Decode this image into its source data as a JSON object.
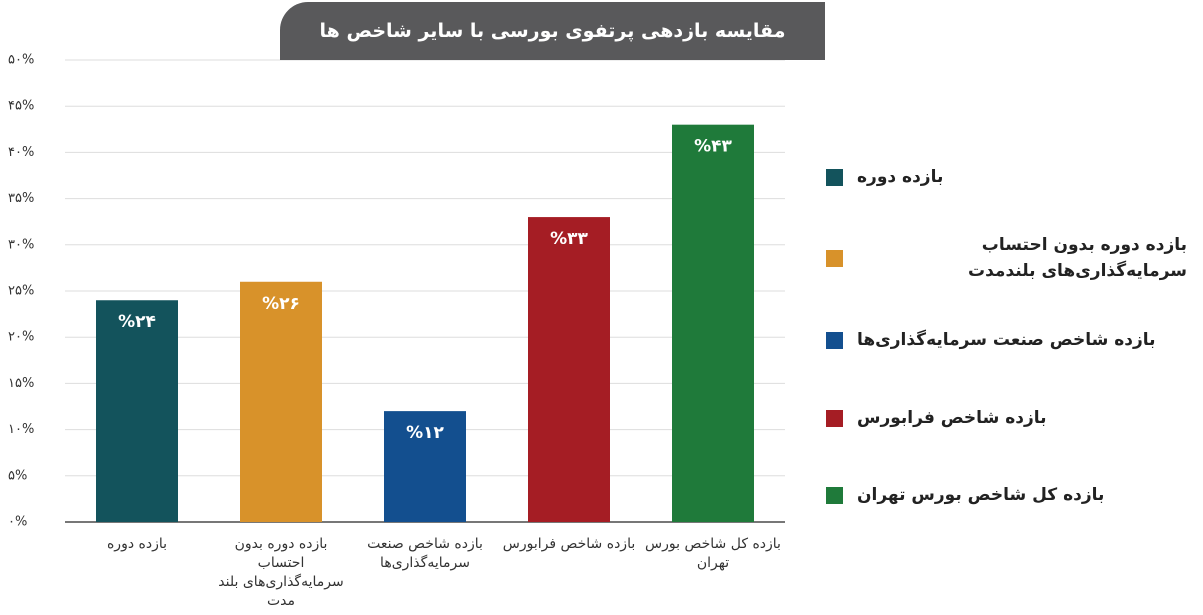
{
  "chart_data": {
    "type": "bar",
    "title": "مقایسه بازدهی پرتفوی بورسی با سایر شاخص ها",
    "categories": [
      "بازده دوره",
      "بازده دوره بدون احتساب سرمایه‌گذاری‌های بلند مدت",
      "بازده شاخص صنعت سرمایه‌گذاری‌ها",
      "بازده شاخص فرابورس",
      "بازده کل شاخص بورس تهران"
    ],
    "values": [
      24,
      26,
      12,
      33,
      43
    ],
    "value_labels": [
      "%۲۴",
      "%۲۶",
      "%۱۲",
      "%۳۳",
      "%۴۳"
    ],
    "colors": [
      "#13535c",
      "#d8922a",
      "#134f8f",
      "#a51d24",
      "#1f7a3a"
    ],
    "legend": [
      "بازده دوره",
      "بازده دوره بدون احتساب سرمایه‌گذاری‌های بلندمدت",
      "بازده شاخص صنعت سرمایه‌گذاری‌ها",
      "بازده شاخص فرابورس",
      "بازده کل شاخص بورس تهران"
    ],
    "ylim": [
      0,
      50
    ],
    "yticks": [
      {
        "value": 0,
        "label": "۰%"
      },
      {
        "value": 5,
        "label": "۵%"
      },
      {
        "value": 10,
        "label": "۱۰%"
      },
      {
        "value": 15,
        "label": "۱۵%"
      },
      {
        "value": 20,
        "label": "۲۰%"
      },
      {
        "value": 25,
        "label": "۲۵%"
      },
      {
        "value": 30,
        "label": "۳۰%"
      },
      {
        "value": 35,
        "label": "۳۵%"
      },
      {
        "value": 40,
        "label": "۴۰%"
      },
      {
        "value": 45,
        "label": "۴۵%"
      },
      {
        "value": 50,
        "label": "۵۰%"
      }
    ],
    "grid": true
  }
}
